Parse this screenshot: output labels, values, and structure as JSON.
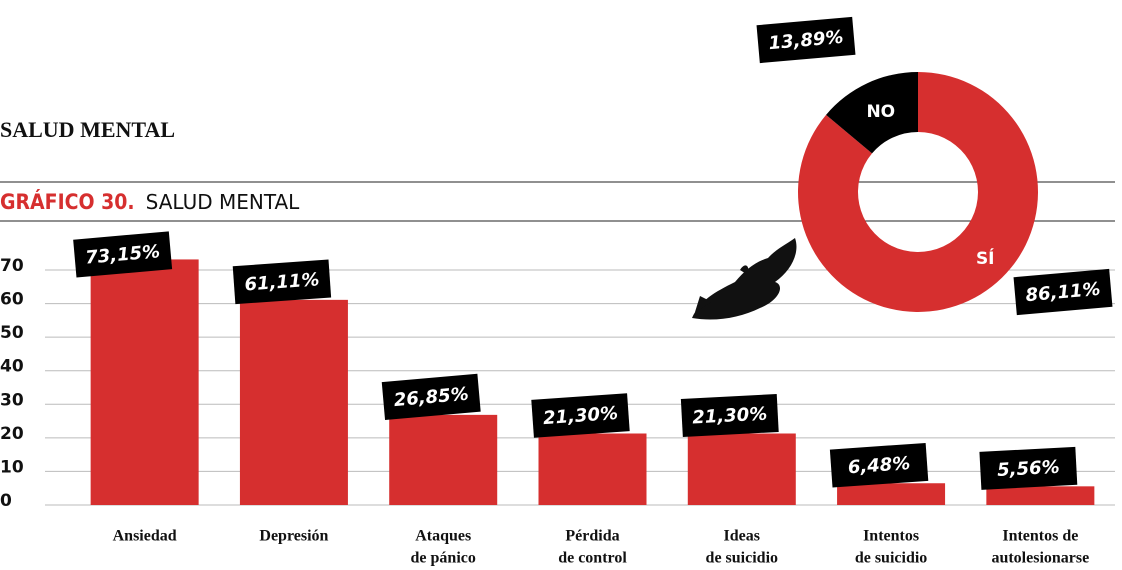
{
  "heading": "SALUD MENTAL",
  "chart_data": [
    {
      "type": "bar",
      "chart_label": "GRÁFICO 30.",
      "title": "SALUD MENTAL",
      "categories": [
        [
          "Ansiedad"
        ],
        [
          "Depresión"
        ],
        [
          "Ataques",
          "de pánico"
        ],
        [
          "Pérdida",
          "de control"
        ],
        [
          "Ideas",
          "de suicidio"
        ],
        [
          "Intentos",
          "de suicidio"
        ],
        [
          "Intentos de",
          "autolesionarse"
        ]
      ],
      "values": [
        73.15,
        61.11,
        26.85,
        21.3,
        21.3,
        6.48,
        5.56
      ],
      "value_labels": [
        "73,15%",
        "61,11%",
        "26,85%",
        "21,30%",
        "21,30%",
        "6,48%",
        "5,56%"
      ],
      "color": "#d62f2f",
      "ylim": [
        0,
        75
      ],
      "yticks": [
        0,
        10,
        20,
        30,
        40,
        50,
        60,
        70
      ],
      "grid": true
    },
    {
      "type": "pie",
      "categories": [
        "SÍ",
        "NO"
      ],
      "values": [
        86.11,
        13.89
      ],
      "value_labels": [
        "86,11%",
        "13,89%"
      ],
      "colors": [
        "#d62f2f",
        "#000000"
      ],
      "donut": true
    }
  ]
}
